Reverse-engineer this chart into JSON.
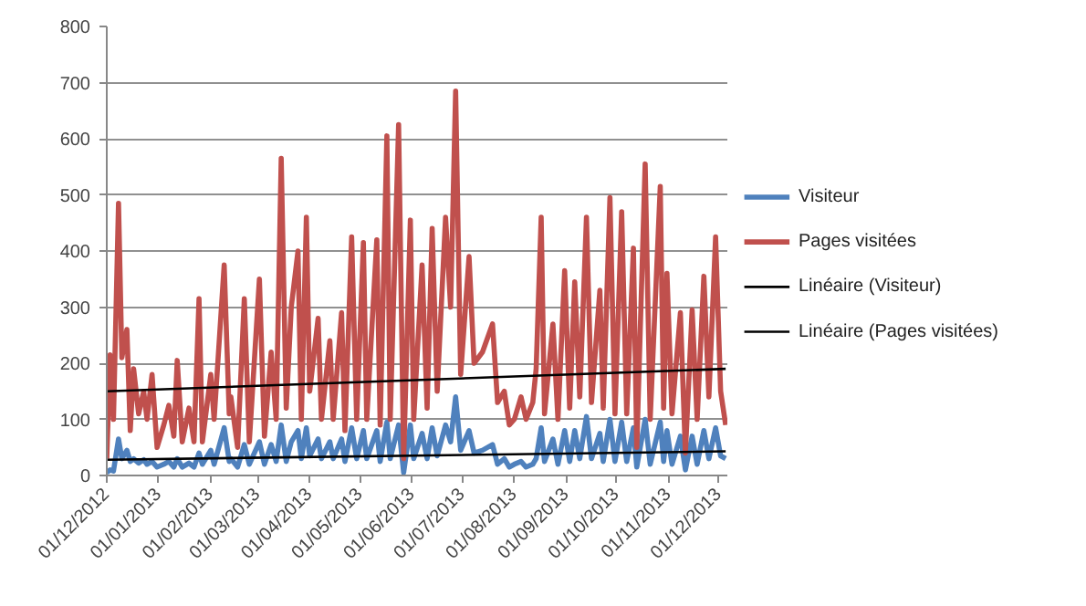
{
  "chart_data": {
    "type": "line",
    "x": [
      "2012-12-01",
      "2012-12-03",
      "2012-12-05",
      "2012-12-08",
      "2012-12-10",
      "2012-12-13",
      "2012-12-15",
      "2012-12-17",
      "2012-12-20",
      "2012-12-23",
      "2012-12-25",
      "2012-12-28",
      "2012-12-31",
      "2013-01-04",
      "2013-01-07",
      "2013-01-10",
      "2013-01-12",
      "2013-01-15",
      "2013-01-19",
      "2013-01-22",
      "2013-01-25",
      "2013-01-27",
      "2013-02-01",
      "2013-02-03",
      "2013-02-09",
      "2013-02-12",
      "2013-02-13",
      "2013-02-17",
      "2013-02-21",
      "2013-02-24",
      "2013-03-02",
      "2013-03-05",
      "2013-03-09",
      "2013-03-12",
      "2013-03-15",
      "2013-03-18",
      "2013-03-21",
      "2013-03-25",
      "2013-03-27",
      "2013-03-30",
      "2013-04-01",
      "2013-04-06",
      "2013-04-08",
      "2013-04-13",
      "2013-04-15",
      "2013-04-20",
      "2013-04-22",
      "2013-04-26",
      "2013-04-29",
      "2013-05-03",
      "2013-05-05",
      "2013-05-11",
      "2013-05-13",
      "2013-05-17",
      "2013-05-19",
      "2013-05-24",
      "2013-05-27",
      "2013-05-31",
      "2013-06-02",
      "2013-06-07",
      "2013-06-10",
      "2013-06-13",
      "2013-06-16",
      "2013-06-21",
      "2013-06-24",
      "2013-06-27",
      "2013-06-30",
      "2013-07-05",
      "2013-07-08",
      "2013-07-13",
      "2013-07-19",
      "2013-07-22",
      "2013-07-26",
      "2013-07-29",
      "2013-08-01",
      "2013-08-05",
      "2013-08-08",
      "2013-08-12",
      "2013-08-14",
      "2013-08-17",
      "2013-08-19",
      "2013-08-24",
      "2013-08-27",
      "2013-08-31",
      "2013-09-03",
      "2013-09-06",
      "2013-09-09",
      "2013-09-13",
      "2013-09-16",
      "2013-09-21",
      "2013-09-23",
      "2013-09-27",
      "2013-09-30",
      "2013-10-04",
      "2013-10-07",
      "2013-10-11",
      "2013-10-13",
      "2013-10-18",
      "2013-10-21",
      "2013-10-27",
      "2013-10-29",
      "2013-10-31",
      "2013-11-03",
      "2013-11-08",
      "2013-11-11",
      "2013-11-15",
      "2013-11-18",
      "2013-11-22",
      "2013-11-25",
      "2013-11-29",
      "2013-12-02",
      "2013-12-05"
    ],
    "series": [
      {
        "name": "Visiteur",
        "color": "#4f81bd",
        "values": [
          5,
          10,
          8,
          65,
          30,
          45,
          25,
          30,
          22,
          28,
          20,
          25,
          15,
          20,
          25,
          15,
          30,
          15,
          22,
          15,
          40,
          20,
          45,
          20,
          85,
          25,
          30,
          15,
          55,
          20,
          60,
          20,
          55,
          25,
          90,
          25,
          60,
          80,
          30,
          85,
          35,
          65,
          30,
          60,
          30,
          65,
          25,
          85,
          30,
          80,
          30,
          80,
          25,
          95,
          30,
          90,
          5,
          90,
          30,
          75,
          30,
          85,
          35,
          90,
          60,
          140,
          45,
          80,
          40,
          45,
          55,
          20,
          30,
          15,
          20,
          25,
          15,
          20,
          30,
          85,
          25,
          65,
          20,
          80,
          25,
          80,
          30,
          105,
          30,
          75,
          25,
          100,
          25,
          95,
          25,
          85,
          15,
          100,
          20,
          95,
          25,
          80,
          20,
          70,
          10,
          70,
          20,
          80,
          30,
          85,
          35,
          30
        ]
      },
      {
        "name": "Pages visitées",
        "color": "#c0504d",
        "values": [
          30,
          215,
          100,
          485,
          210,
          260,
          80,
          190,
          110,
          150,
          100,
          180,
          50,
          90,
          125,
          70,
          205,
          60,
          120,
          60,
          315,
          60,
          180,
          100,
          375,
          110,
          140,
          50,
          315,
          60,
          350,
          70,
          220,
          100,
          565,
          120,
          300,
          400,
          100,
          460,
          150,
          280,
          100,
          240,
          100,
          290,
          80,
          425,
          100,
          415,
          100,
          420,
          90,
          605,
          100,
          625,
          30,
          455,
          100,
          375,
          120,
          440,
          150,
          460,
          300,
          685,
          180,
          390,
          200,
          220,
          270,
          130,
          150,
          90,
          100,
          140,
          100,
          130,
          190,
          460,
          110,
          270,
          100,
          365,
          120,
          345,
          140,
          460,
          130,
          330,
          120,
          495,
          110,
          470,
          110,
          405,
          50,
          555,
          100,
          515,
          120,
          360,
          110,
          290,
          40,
          295,
          100,
          355,
          140,
          425,
          150,
          90
        ]
      },
      {
        "name": "Linéaire (Visiteur)",
        "color": "#000000",
        "type": "line",
        "x": [
          "2012-12-01",
          "2013-12-05"
        ],
        "values": [
          28,
          43
        ]
      },
      {
        "name": "Linéaire (Pages visitées)",
        "color": "#000000",
        "type": "line",
        "x": [
          "2012-12-01",
          "2013-12-05"
        ],
        "values": [
          150,
          190
        ]
      }
    ],
    "xlim": [
      "2012-12-01",
      "2013-12-06"
    ],
    "xticks": [
      {
        "value": "2012-12-01",
        "label": "01/12/2012"
      },
      {
        "value": "2013-01-01",
        "label": "01/01/2013"
      },
      {
        "value": "2013-02-01",
        "label": "01/02/2013"
      },
      {
        "value": "2013-03-01",
        "label": "01/03/2013"
      },
      {
        "value": "2013-04-01",
        "label": "01/04/2013"
      },
      {
        "value": "2013-05-01",
        "label": "01/05/2013"
      },
      {
        "value": "2013-06-01",
        "label": "01/06/2013"
      },
      {
        "value": "2013-07-01",
        "label": "01/07/2013"
      },
      {
        "value": "2013-08-01",
        "label": "01/08/2013"
      },
      {
        "value": "2013-09-01",
        "label": "01/09/2013"
      },
      {
        "value": "2013-10-01",
        "label": "01/10/2013"
      },
      {
        "value": "2013-11-01",
        "label": "01/11/2013"
      },
      {
        "value": "2013-12-01",
        "label": "01/12/2013"
      }
    ],
    "ylim": [
      0,
      800
    ],
    "yticks": [
      0,
      100,
      200,
      300,
      400,
      500,
      600,
      700,
      800
    ],
    "grid": "y",
    "legend": "right"
  }
}
